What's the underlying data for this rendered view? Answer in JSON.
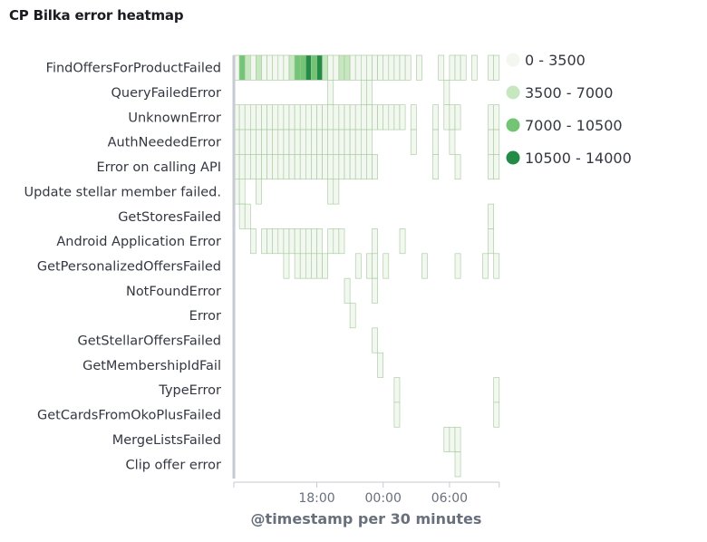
{
  "panel": {
    "title": "CP Bilka error heatmap"
  },
  "colors": {
    "bin1": "#f2f8ef",
    "bin2": "#c7e7c0",
    "bin3": "#74c476",
    "bin4": "#238b45",
    "cell_stroke": "#a3c69c",
    "axis": "#c6cad1"
  },
  "chart_data": {
    "type": "heatmap",
    "title": "CP Bilka error heatmap",
    "xlabel": "@timestamp per 30 minutes",
    "ylabel": "",
    "x_ticks": [
      "18:00",
      "00:00",
      "06:00"
    ],
    "bucket": "30 minutes",
    "legend": [
      {
        "label": "0 - 3500",
        "color": "#f2f8ef"
      },
      {
        "label": "3500 - 7000",
        "color": "#c7e7c0"
      },
      {
        "label": "7000 - 10500",
        "color": "#74c476"
      },
      {
        "label": "10500 - 14000",
        "color": "#238b45"
      }
    ],
    "rows": [
      {
        "name": "FindOffersForProductFailed",
        "cells": [
          {
            "s": 0,
            "e": 1,
            "bin": 0
          },
          {
            "s": 1,
            "e": 2,
            "bin": 2
          },
          {
            "s": 2,
            "e": 3,
            "bin": 1
          },
          {
            "s": 3,
            "e": 4,
            "bin": 0
          },
          {
            "s": 4,
            "e": 5,
            "bin": 1
          },
          {
            "s": 5,
            "e": 6,
            "bin": 0
          },
          {
            "s": 6,
            "e": 7,
            "bin": 0
          },
          {
            "s": 7,
            "e": 8,
            "bin": 0
          },
          {
            "s": 8,
            "e": 9,
            "bin": 0
          },
          {
            "s": 9,
            "e": 10,
            "bin": 0
          },
          {
            "s": 10,
            "e": 11,
            "bin": 1
          },
          {
            "s": 11,
            "e": 12,
            "bin": 2
          },
          {
            "s": 12,
            "e": 13,
            "bin": 2
          },
          {
            "s": 13,
            "e": 14,
            "bin": 3
          },
          {
            "s": 14,
            "e": 15,
            "bin": 2
          },
          {
            "s": 15,
            "e": 16,
            "bin": 3
          },
          {
            "s": 16,
            "e": 17,
            "bin": 1
          },
          {
            "s": 17,
            "e": 18,
            "bin": 0
          },
          {
            "s": 18,
            "e": 19,
            "bin": 0
          },
          {
            "s": 19,
            "e": 20,
            "bin": 1
          },
          {
            "s": 20,
            "e": 21,
            "bin": 1
          },
          {
            "s": 21,
            "e": 22,
            "bin": 0
          },
          {
            "s": 22,
            "e": 23,
            "bin": 0
          },
          {
            "s": 23,
            "e": 24,
            "bin": 0
          },
          {
            "s": 24,
            "e": 25,
            "bin": 0
          },
          {
            "s": 25,
            "e": 26,
            "bin": 0
          },
          {
            "s": 26,
            "e": 27,
            "bin": 0
          },
          {
            "s": 27,
            "e": 28,
            "bin": 0
          },
          {
            "s": 28,
            "e": 29,
            "bin": 0
          },
          {
            "s": 29,
            "e": 30,
            "bin": 0
          },
          {
            "s": 30,
            "e": 31,
            "bin": 0
          },
          {
            "s": 31,
            "e": 32,
            "bin": 0
          },
          {
            "s": 33,
            "e": 34,
            "bin": 0
          },
          {
            "s": 37,
            "e": 38,
            "bin": 0
          },
          {
            "s": 39,
            "e": 40,
            "bin": 0
          },
          {
            "s": 40,
            "e": 41,
            "bin": 0
          },
          {
            "s": 41,
            "e": 42,
            "bin": 0
          },
          {
            "s": 43,
            "e": 44,
            "bin": 0
          },
          {
            "s": 46,
            "e": 47,
            "bin": 0
          },
          {
            "s": 47,
            "e": 48,
            "bin": 0
          }
        ]
      },
      {
        "name": "QueryFailedError",
        "cells": [
          {
            "s": 17,
            "e": 18,
            "bin": 0
          },
          {
            "s": 23,
            "e": 24,
            "bin": 0
          },
          {
            "s": 24,
            "e": 25,
            "bin": 0
          },
          {
            "s": 38,
            "e": 39,
            "bin": 0
          }
        ]
      },
      {
        "name": "UnknownError",
        "cells": [
          {
            "s": 0,
            "e": 1,
            "bin": 0
          },
          {
            "s": 1,
            "e": 2,
            "bin": 0
          },
          {
            "s": 2,
            "e": 3,
            "bin": 0
          },
          {
            "s": 3,
            "e": 4,
            "bin": 0
          },
          {
            "s": 4,
            "e": 5,
            "bin": 0
          },
          {
            "s": 5,
            "e": 6,
            "bin": 0
          },
          {
            "s": 6,
            "e": 7,
            "bin": 0
          },
          {
            "s": 7,
            "e": 8,
            "bin": 0
          },
          {
            "s": 8,
            "e": 9,
            "bin": 0
          },
          {
            "s": 9,
            "e": 10,
            "bin": 0
          },
          {
            "s": 10,
            "e": 11,
            "bin": 0
          },
          {
            "s": 11,
            "e": 12,
            "bin": 0
          },
          {
            "s": 12,
            "e": 13,
            "bin": 0
          },
          {
            "s": 13,
            "e": 14,
            "bin": 0
          },
          {
            "s": 14,
            "e": 15,
            "bin": 0
          },
          {
            "s": 15,
            "e": 16,
            "bin": 0
          },
          {
            "s": 16,
            "e": 17,
            "bin": 0
          },
          {
            "s": 17,
            "e": 18,
            "bin": 0
          },
          {
            "s": 18,
            "e": 19,
            "bin": 0
          },
          {
            "s": 19,
            "e": 20,
            "bin": 0
          },
          {
            "s": 20,
            "e": 21,
            "bin": 0
          },
          {
            "s": 21,
            "e": 22,
            "bin": 0
          },
          {
            "s": 22,
            "e": 23,
            "bin": 0
          },
          {
            "s": 23,
            "e": 24,
            "bin": 0
          },
          {
            "s": 24,
            "e": 25,
            "bin": 0
          },
          {
            "s": 25,
            "e": 26,
            "bin": 0
          },
          {
            "s": 26,
            "e": 27,
            "bin": 0
          },
          {
            "s": 27,
            "e": 28,
            "bin": 0
          },
          {
            "s": 28,
            "e": 29,
            "bin": 0
          },
          {
            "s": 29,
            "e": 30,
            "bin": 0
          },
          {
            "s": 30,
            "e": 31,
            "bin": 0
          },
          {
            "s": 32,
            "e": 33,
            "bin": 0
          },
          {
            "s": 36,
            "e": 37,
            "bin": 0
          },
          {
            "s": 38,
            "e": 39,
            "bin": 0
          },
          {
            "s": 39,
            "e": 40,
            "bin": 0
          },
          {
            "s": 40,
            "e": 41,
            "bin": 0
          },
          {
            "s": 46,
            "e": 47,
            "bin": 0
          },
          {
            "s": 47,
            "e": 48,
            "bin": 0
          }
        ]
      },
      {
        "name": "AuthNeededError",
        "cells": [
          {
            "s": 0,
            "e": 1,
            "bin": 0
          },
          {
            "s": 1,
            "e": 2,
            "bin": 0
          },
          {
            "s": 2,
            "e": 3,
            "bin": 0
          },
          {
            "s": 3,
            "e": 4,
            "bin": 0
          },
          {
            "s": 4,
            "e": 5,
            "bin": 0
          },
          {
            "s": 5,
            "e": 6,
            "bin": 0
          },
          {
            "s": 6,
            "e": 7,
            "bin": 0
          },
          {
            "s": 7,
            "e": 8,
            "bin": 0
          },
          {
            "s": 8,
            "e": 9,
            "bin": 0
          },
          {
            "s": 9,
            "e": 10,
            "bin": 0
          },
          {
            "s": 10,
            "e": 11,
            "bin": 0
          },
          {
            "s": 11,
            "e": 12,
            "bin": 0
          },
          {
            "s": 12,
            "e": 13,
            "bin": 0
          },
          {
            "s": 13,
            "e": 14,
            "bin": 0
          },
          {
            "s": 14,
            "e": 15,
            "bin": 0
          },
          {
            "s": 15,
            "e": 16,
            "bin": 0
          },
          {
            "s": 16,
            "e": 17,
            "bin": 0
          },
          {
            "s": 17,
            "e": 18,
            "bin": 0
          },
          {
            "s": 18,
            "e": 19,
            "bin": 0
          },
          {
            "s": 19,
            "e": 20,
            "bin": 0
          },
          {
            "s": 20,
            "e": 21,
            "bin": 0
          },
          {
            "s": 21,
            "e": 22,
            "bin": 0
          },
          {
            "s": 22,
            "e": 23,
            "bin": 0
          },
          {
            "s": 23,
            "e": 24,
            "bin": 0
          },
          {
            "s": 24,
            "e": 25,
            "bin": 0
          },
          {
            "s": 32,
            "e": 33,
            "bin": 0
          },
          {
            "s": 36,
            "e": 37,
            "bin": 0
          },
          {
            "s": 39,
            "e": 40,
            "bin": 0
          },
          {
            "s": 46,
            "e": 47,
            "bin": 0
          },
          {
            "s": 47,
            "e": 48,
            "bin": 0
          }
        ]
      },
      {
        "name": "Error on calling API",
        "cells": [
          {
            "s": 0,
            "e": 1,
            "bin": 0
          },
          {
            "s": 1,
            "e": 2,
            "bin": 0
          },
          {
            "s": 2,
            "e": 3,
            "bin": 0
          },
          {
            "s": 3,
            "e": 4,
            "bin": 0
          },
          {
            "s": 4,
            "e": 5,
            "bin": 0
          },
          {
            "s": 5,
            "e": 6,
            "bin": 0
          },
          {
            "s": 6,
            "e": 7,
            "bin": 0
          },
          {
            "s": 7,
            "e": 8,
            "bin": 0
          },
          {
            "s": 8,
            "e": 9,
            "bin": 0
          },
          {
            "s": 9,
            "e": 10,
            "bin": 0
          },
          {
            "s": 10,
            "e": 11,
            "bin": 0
          },
          {
            "s": 11,
            "e": 12,
            "bin": 0
          },
          {
            "s": 12,
            "e": 13,
            "bin": 0
          },
          {
            "s": 13,
            "e": 14,
            "bin": 0
          },
          {
            "s": 14,
            "e": 15,
            "bin": 0
          },
          {
            "s": 15,
            "e": 16,
            "bin": 0
          },
          {
            "s": 16,
            "e": 17,
            "bin": 0
          },
          {
            "s": 17,
            "e": 18,
            "bin": 0
          },
          {
            "s": 18,
            "e": 19,
            "bin": 0
          },
          {
            "s": 19,
            "e": 20,
            "bin": 0
          },
          {
            "s": 20,
            "e": 21,
            "bin": 0
          },
          {
            "s": 21,
            "e": 22,
            "bin": 0
          },
          {
            "s": 22,
            "e": 23,
            "bin": 0
          },
          {
            "s": 23,
            "e": 24,
            "bin": 0
          },
          {
            "s": 24,
            "e": 25,
            "bin": 0
          },
          {
            "s": 25,
            "e": 26,
            "bin": 0
          },
          {
            "s": 36,
            "e": 37,
            "bin": 0
          },
          {
            "s": 40,
            "e": 41,
            "bin": 0
          },
          {
            "s": 46,
            "e": 47,
            "bin": 0
          },
          {
            "s": 47,
            "e": 48,
            "bin": 0
          }
        ]
      },
      {
        "name": "Update stellar member failed.",
        "cells": [
          {
            "s": 0,
            "e": 1,
            "bin": 0
          },
          {
            "s": 1,
            "e": 2,
            "bin": 0
          },
          {
            "s": 4,
            "e": 5,
            "bin": 0
          },
          {
            "s": 17,
            "e": 18,
            "bin": 0
          },
          {
            "s": 18,
            "e": 19,
            "bin": 0
          }
        ]
      },
      {
        "name": "GetStoresFailed",
        "cells": [
          {
            "s": 1,
            "e": 2,
            "bin": 0
          },
          {
            "s": 2,
            "e": 3,
            "bin": 0
          },
          {
            "s": 46,
            "e": 47,
            "bin": 0
          }
        ]
      },
      {
        "name": "Android Application Error",
        "cells": [
          {
            "s": 3,
            "e": 4,
            "bin": 0
          },
          {
            "s": 5,
            "e": 6,
            "bin": 0
          },
          {
            "s": 6,
            "e": 7,
            "bin": 0
          },
          {
            "s": 7,
            "e": 8,
            "bin": 0
          },
          {
            "s": 8,
            "e": 9,
            "bin": 0
          },
          {
            "s": 9,
            "e": 10,
            "bin": 0
          },
          {
            "s": 10,
            "e": 11,
            "bin": 0
          },
          {
            "s": 11,
            "e": 12,
            "bin": 0
          },
          {
            "s": 12,
            "e": 13,
            "bin": 0
          },
          {
            "s": 13,
            "e": 14,
            "bin": 0
          },
          {
            "s": 14,
            "e": 15,
            "bin": 0
          },
          {
            "s": 15,
            "e": 16,
            "bin": 0
          },
          {
            "s": 17,
            "e": 18,
            "bin": 0
          },
          {
            "s": 18,
            "e": 19,
            "bin": 0
          },
          {
            "s": 19,
            "e": 20,
            "bin": 0
          },
          {
            "s": 25,
            "e": 26,
            "bin": 0
          },
          {
            "s": 30,
            "e": 31,
            "bin": 0
          },
          {
            "s": 46,
            "e": 47,
            "bin": 0
          }
        ]
      },
      {
        "name": "GetPersonalizedOffersFailed",
        "cells": [
          {
            "s": 9,
            "e": 10,
            "bin": 0
          },
          {
            "s": 11,
            "e": 12,
            "bin": 0
          },
          {
            "s": 12,
            "e": 13,
            "bin": 0
          },
          {
            "s": 13,
            "e": 14,
            "bin": 0
          },
          {
            "s": 14,
            "e": 15,
            "bin": 0
          },
          {
            "s": 15,
            "e": 16,
            "bin": 0
          },
          {
            "s": 16,
            "e": 17,
            "bin": 0
          },
          {
            "s": 22,
            "e": 23,
            "bin": 0
          },
          {
            "s": 24,
            "e": 25,
            "bin": 0
          },
          {
            "s": 25,
            "e": 26,
            "bin": 0
          },
          {
            "s": 27,
            "e": 28,
            "bin": 0
          },
          {
            "s": 34,
            "e": 35,
            "bin": 0
          },
          {
            "s": 40,
            "e": 41,
            "bin": 0
          },
          {
            "s": 45,
            "e": 46,
            "bin": 0
          },
          {
            "s": 47,
            "e": 48,
            "bin": 0
          }
        ]
      },
      {
        "name": "NotFoundError",
        "cells": [
          {
            "s": 20,
            "e": 21,
            "bin": 0
          },
          {
            "s": 25,
            "e": 26,
            "bin": 0
          }
        ]
      },
      {
        "name": "Error",
        "cells": [
          {
            "s": 21,
            "e": 22,
            "bin": 0
          }
        ]
      },
      {
        "name": "GetStellarOffersFailed",
        "cells": [
          {
            "s": 25,
            "e": 26,
            "bin": 0
          }
        ]
      },
      {
        "name": "GetMembershipIdFail",
        "cells": [
          {
            "s": 26,
            "e": 27,
            "bin": 0
          }
        ]
      },
      {
        "name": "TypeError",
        "cells": [
          {
            "s": 29,
            "e": 30,
            "bin": 0
          },
          {
            "s": 47,
            "e": 48,
            "bin": 0
          }
        ]
      },
      {
        "name": "GetCardsFromOkoPlusFailed",
        "cells": [
          {
            "s": 29,
            "e": 30,
            "bin": 0
          },
          {
            "s": 47,
            "e": 48,
            "bin": 0
          }
        ]
      },
      {
        "name": "MergeListsFailed",
        "cells": [
          {
            "s": 38,
            "e": 39,
            "bin": 0
          },
          {
            "s": 39,
            "e": 40,
            "bin": 0
          },
          {
            "s": 40,
            "e": 41,
            "bin": 0
          }
        ]
      },
      {
        "name": "Clip offer error",
        "cells": [
          {
            "s": 40,
            "e": 41,
            "bin": 0
          }
        ]
      }
    ]
  }
}
